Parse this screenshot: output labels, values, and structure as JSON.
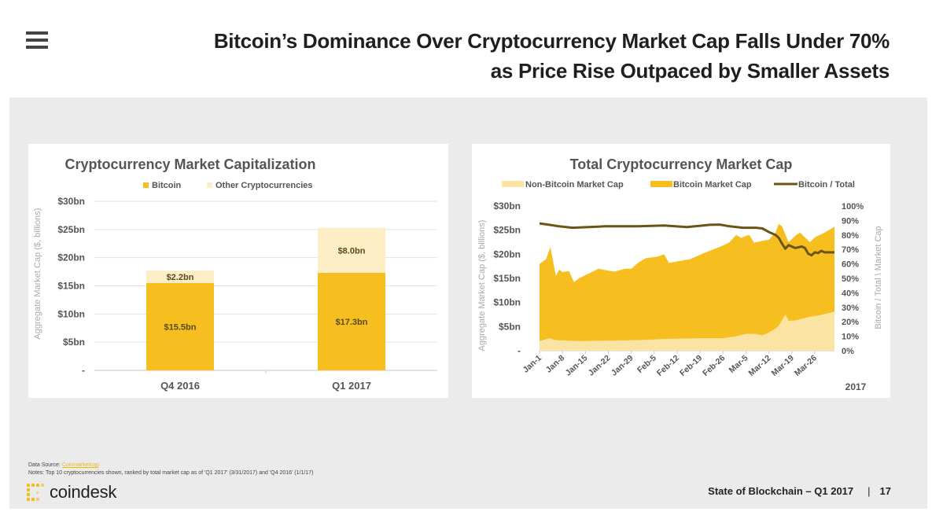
{
  "header": {
    "menu_icon": "hamburger-menu-icon",
    "title_line1": "Bitcoin’s Dominance Over Cryptocurrency Market Cap Falls Under 70%",
    "title_line2": "as Price Rise Outpaced by Smaller Assets"
  },
  "colors": {
    "bitcoin": "#f6be1e",
    "non_bitcoin": "#fbe3a4",
    "other_crypto": "#fdeec6",
    "ratio_line": "#6b5414",
    "grid": "#e2e2e2",
    "panel_bg": "#ebebeb"
  },
  "chart_data": [
    {
      "type": "bar",
      "stacked": true,
      "title": "Cryptocurrency Market Capitalization",
      "ylabel": "Aggregate Market Cap ($, billions)",
      "xlabel": "",
      "categories": [
        "Q4 2016",
        "Q1 2017"
      ],
      "series": [
        {
          "name": "Bitcoin",
          "values": [
            15.5,
            17.3
          ],
          "labels": [
            "$15.5bn",
            "$17.3bn"
          ]
        },
        {
          "name": "Other Cryptocurrencies",
          "values": [
            2.2,
            8.0
          ],
          "labels": [
            "$2.2bn",
            "$8.0bn"
          ]
        }
      ],
      "ylim": [
        0,
        30
      ],
      "yticks": [
        0,
        5,
        10,
        15,
        20,
        25,
        30
      ],
      "ytick_labels": [
        "-",
        "$5bn",
        "$10bn",
        "$15bn",
        "$20bn",
        "$25bn",
        "$30bn"
      ],
      "grid": true,
      "legend": "top"
    },
    {
      "type": "area",
      "title": "Total Cryptocurrency Market Cap",
      "ylabel": "Aggregate Market Cap ($, billions)",
      "y2label": "Bitcoin / Total \\ Market Cap",
      "xlabel": "2017",
      "x_start": "Jan-1",
      "x_end": "Mar-31",
      "xtick_labels": [
        "Jan-1",
        "Jan-8",
        "Jan-15",
        "Jan-22",
        "Jan-29",
        "Feb-5",
        "Feb-12",
        "Feb-19",
        "Feb-26",
        "Mar-5",
        "Mar-12",
        "Mar-19",
        "Mar-26"
      ],
      "xtick_days": [
        0,
        7,
        14,
        21,
        28,
        35,
        42,
        49,
        56,
        63,
        70,
        77,
        84
      ],
      "ylim": [
        0,
        30
      ],
      "ytick_labels": [
        "-",
        "$5bn",
        "$10bn",
        "$15bn",
        "$20bn",
        "$25bn",
        "$30bn"
      ],
      "y2lim": [
        0,
        100
      ],
      "y2tick_labels": [
        "0%",
        "10%",
        "20%",
        "30%",
        "40%",
        "50%",
        "60%",
        "70%",
        "80%",
        "90%",
        "100%"
      ],
      "legend": "top",
      "series": [
        {
          "name": "Non-Bitcoin Market Cap",
          "kind": "area",
          "unit": "$bn",
          "points": [
            [
              0,
              2.0
            ],
            [
              3,
              2.6
            ],
            [
              5,
              2.2
            ],
            [
              12,
              2.0
            ],
            [
              20,
              2.1
            ],
            [
              30,
              2.2
            ],
            [
              40,
              2.5
            ],
            [
              50,
              2.6
            ],
            [
              56,
              2.6
            ],
            [
              60,
              3.0
            ],
            [
              63,
              3.5
            ],
            [
              66,
              3.5
            ],
            [
              68,
              3.2
            ],
            [
              70,
              3.8
            ],
            [
              72,
              4.6
            ],
            [
              73,
              5.2
            ],
            [
              75,
              7.5
            ],
            [
              76,
              6.2
            ],
            [
              78,
              6.3
            ],
            [
              80,
              6.6
            ],
            [
              82,
              7.0
            ],
            [
              85,
              7.3
            ],
            [
              88,
              7.8
            ],
            [
              90,
              8.1
            ]
          ]
        },
        {
          "name": "Bitcoin Market Cap",
          "kind": "stacked-area-total",
          "unit": "$bn",
          "points": [
            [
              0,
              18.0
            ],
            [
              2,
              19.0
            ],
            [
              3.3,
              21.5
            ],
            [
              5,
              15.5
            ],
            [
              6,
              16.8
            ],
            [
              7,
              16.3
            ],
            [
              9,
              16.5
            ],
            [
              10.5,
              14.2
            ],
            [
              12,
              15.0
            ],
            [
              15,
              16.0
            ],
            [
              18,
              17.0
            ],
            [
              21,
              16.6
            ],
            [
              23,
              16.4
            ],
            [
              26,
              17.0
            ],
            [
              28,
              17.0
            ],
            [
              30,
              18.2
            ],
            [
              32.5,
              19.2
            ],
            [
              36,
              19.5
            ],
            [
              38,
              20.0
            ],
            [
              39.5,
              18.2
            ],
            [
              42,
              18.5
            ],
            [
              46,
              19.0
            ],
            [
              50,
              20.2
            ],
            [
              53,
              21.0
            ],
            [
              56,
              21.8
            ],
            [
              58,
              22.5
            ],
            [
              60,
              24.0
            ],
            [
              61.5,
              23.4
            ],
            [
              63,
              23.8
            ],
            [
              64,
              24.0
            ],
            [
              65.5,
              22.4
            ],
            [
              68,
              22.8
            ],
            [
              70,
              23.0
            ],
            [
              72,
              24.5
            ],
            [
              73,
              26.3
            ],
            [
              74,
              25.8
            ],
            [
              76,
              22.5
            ],
            [
              78,
              23.8
            ],
            [
              79.5,
              24.5
            ],
            [
              81,
              23.5
            ],
            [
              82.5,
              22.5
            ],
            [
              84,
              23.5
            ],
            [
              87,
              24.5
            ],
            [
              90,
              25.7
            ]
          ]
        },
        {
          "name": "Bitcoin / Total",
          "kind": "line",
          "axis": "right",
          "unit": "%",
          "points": [
            [
              0,
              88
            ],
            [
              3,
              87
            ],
            [
              6,
              86
            ],
            [
              10,
              85
            ],
            [
              15,
              85.5
            ],
            [
              20,
              86
            ],
            [
              30,
              86
            ],
            [
              38,
              86.5
            ],
            [
              45,
              85.5
            ],
            [
              52,
              87
            ],
            [
              55,
              87.2
            ],
            [
              58,
              86
            ],
            [
              62,
              85
            ],
            [
              66,
              85
            ],
            [
              68,
              84.5
            ],
            [
              70,
              82
            ],
            [
              72,
              80
            ],
            [
              73,
              78
            ],
            [
              74,
              74
            ],
            [
              75,
              70.5
            ],
            [
              76,
              73
            ],
            [
              77,
              72
            ],
            [
              78,
              71
            ],
            [
              80,
              72
            ],
            [
              81,
              71
            ],
            [
              82,
              67
            ],
            [
              83,
              66
            ],
            [
              84,
              68
            ],
            [
              85,
              67.5
            ],
            [
              86,
              69
            ],
            [
              87,
              68
            ],
            [
              90,
              68
            ]
          ]
        }
      ]
    }
  ],
  "footer": {
    "source_label": "Data Source:",
    "source_link": "Coinmarketcap",
    "notes": "Notes: Top 10 cryptocurrencies shown, ranked by total market cap as of 'Q1 2017' (3/31/2017) and 'Q4 2016' (1/1/17)",
    "logo_text": "coindesk",
    "report_title": "State of Blockchain – Q1 2017",
    "separator": "|",
    "page_number": "17"
  }
}
